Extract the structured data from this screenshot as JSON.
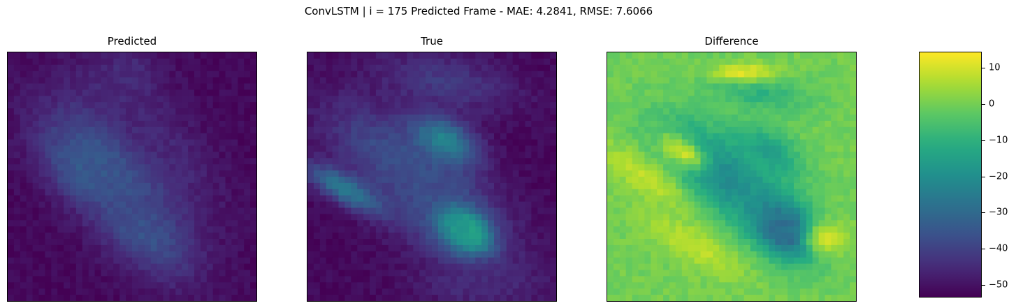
{
  "figure": {
    "suptitle": "ConvLSTM | i = 175 Predicted Frame - MAE: 4.2841, RMSE: 7.6066"
  },
  "chart_data": [
    {
      "type": "heatmap",
      "title": "Predicted",
      "grid": false,
      "description_values": "approximate field; values in colorbar units",
      "vmin": -53.5,
      "vmax": 14.5,
      "colormap": "viridis",
      "blobs": [
        {
          "cx": 0.42,
          "cy": 0.42,
          "sx": 0.22,
          "sy": 0.12,
          "rot": 35,
          "v": -33
        },
        {
          "cx": 0.32,
          "cy": 0.48,
          "sx": 0.12,
          "sy": 0.08,
          "rot": 30,
          "v": -34
        },
        {
          "cx": 0.55,
          "cy": 0.72,
          "sx": 0.18,
          "sy": 0.1,
          "rot": 40,
          "v": -36
        },
        {
          "cx": 0.48,
          "cy": 0.1,
          "sx": 0.1,
          "sy": 0.08,
          "rot": 0,
          "v": -44
        },
        {
          "cx": 0.55,
          "cy": 0.3,
          "sx": 0.25,
          "sy": 0.1,
          "rot": 45,
          "v": -46
        }
      ],
      "base": -52
    },
    {
      "type": "heatmap",
      "title": "True",
      "grid": false,
      "vmin": -53.5,
      "vmax": 14.5,
      "colormap": "viridis",
      "blobs": [
        {
          "cx": 0.38,
          "cy": 0.45,
          "sx": 0.25,
          "sy": 0.1,
          "rot": 35,
          "v": -36
        },
        {
          "cx": 0.55,
          "cy": 0.65,
          "sx": 0.22,
          "sy": 0.12,
          "rot": 40,
          "v": -38
        },
        {
          "cx": 0.65,
          "cy": 0.72,
          "sx": 0.06,
          "sy": 0.04,
          "rot": 40,
          "v": 0
        },
        {
          "cx": 0.62,
          "cy": 0.72,
          "sx": 0.08,
          "sy": 0.06,
          "rot": 40,
          "v": -18
        },
        {
          "cx": 0.55,
          "cy": 0.35,
          "sx": 0.1,
          "sy": 0.06,
          "rot": 30,
          "v": -22
        },
        {
          "cx": 0.15,
          "cy": 0.55,
          "sx": 0.12,
          "sy": 0.04,
          "rot": 30,
          "v": -25
        },
        {
          "cx": 0.55,
          "cy": 0.12,
          "sx": 0.2,
          "sy": 0.08,
          "rot": 10,
          "v": -42
        },
        {
          "cx": 0.7,
          "cy": 0.93,
          "sx": 0.18,
          "sy": 0.06,
          "rot": 0,
          "v": -45
        }
      ],
      "base": -52
    },
    {
      "type": "heatmap",
      "title": "Difference",
      "grid": false,
      "vmin": -53.5,
      "vmax": 14.5,
      "colormap": "viridis",
      "blobs": [
        {
          "cx": 0.72,
          "cy": 0.72,
          "sx": 0.06,
          "sy": 0.04,
          "rot": 40,
          "v": -50
        },
        {
          "cx": 0.7,
          "cy": 0.7,
          "sx": 0.12,
          "sy": 0.08,
          "rot": 40,
          "v": -30
        },
        {
          "cx": 0.45,
          "cy": 0.48,
          "sx": 0.2,
          "sy": 0.1,
          "rot": 35,
          "v": -22
        },
        {
          "cx": 0.65,
          "cy": 0.4,
          "sx": 0.1,
          "sy": 0.06,
          "rot": 30,
          "v": -15
        },
        {
          "cx": 0.6,
          "cy": 0.15,
          "sx": 0.15,
          "sy": 0.06,
          "rot": 10,
          "v": -10
        },
        {
          "cx": 0.15,
          "cy": 0.5,
          "sx": 0.15,
          "sy": 0.05,
          "rot": 35,
          "v": 8
        },
        {
          "cx": 0.3,
          "cy": 0.4,
          "sx": 0.08,
          "sy": 0.04,
          "rot": 30,
          "v": 10
        },
        {
          "cx": 0.35,
          "cy": 0.78,
          "sx": 0.15,
          "sy": 0.05,
          "rot": 30,
          "v": 8
        },
        {
          "cx": 0.88,
          "cy": 0.75,
          "sx": 0.06,
          "sy": 0.05,
          "rot": 0,
          "v": 10
        },
        {
          "cx": 0.55,
          "cy": 0.08,
          "sx": 0.1,
          "sy": 0.03,
          "rot": 0,
          "v": 12
        }
      ],
      "base": 0
    }
  ],
  "colorbar": {
    "vmin": -53.5,
    "vmax": 14.5,
    "ticks": [
      {
        "value": 10,
        "label": "10"
      },
      {
        "value": 0,
        "label": "0"
      },
      {
        "value": -10,
        "label": "−10"
      },
      {
        "value": -20,
        "label": "−20"
      },
      {
        "value": -30,
        "label": "−30"
      },
      {
        "value": -40,
        "label": "−40"
      },
      {
        "value": -50,
        "label": "−50"
      }
    ]
  }
}
